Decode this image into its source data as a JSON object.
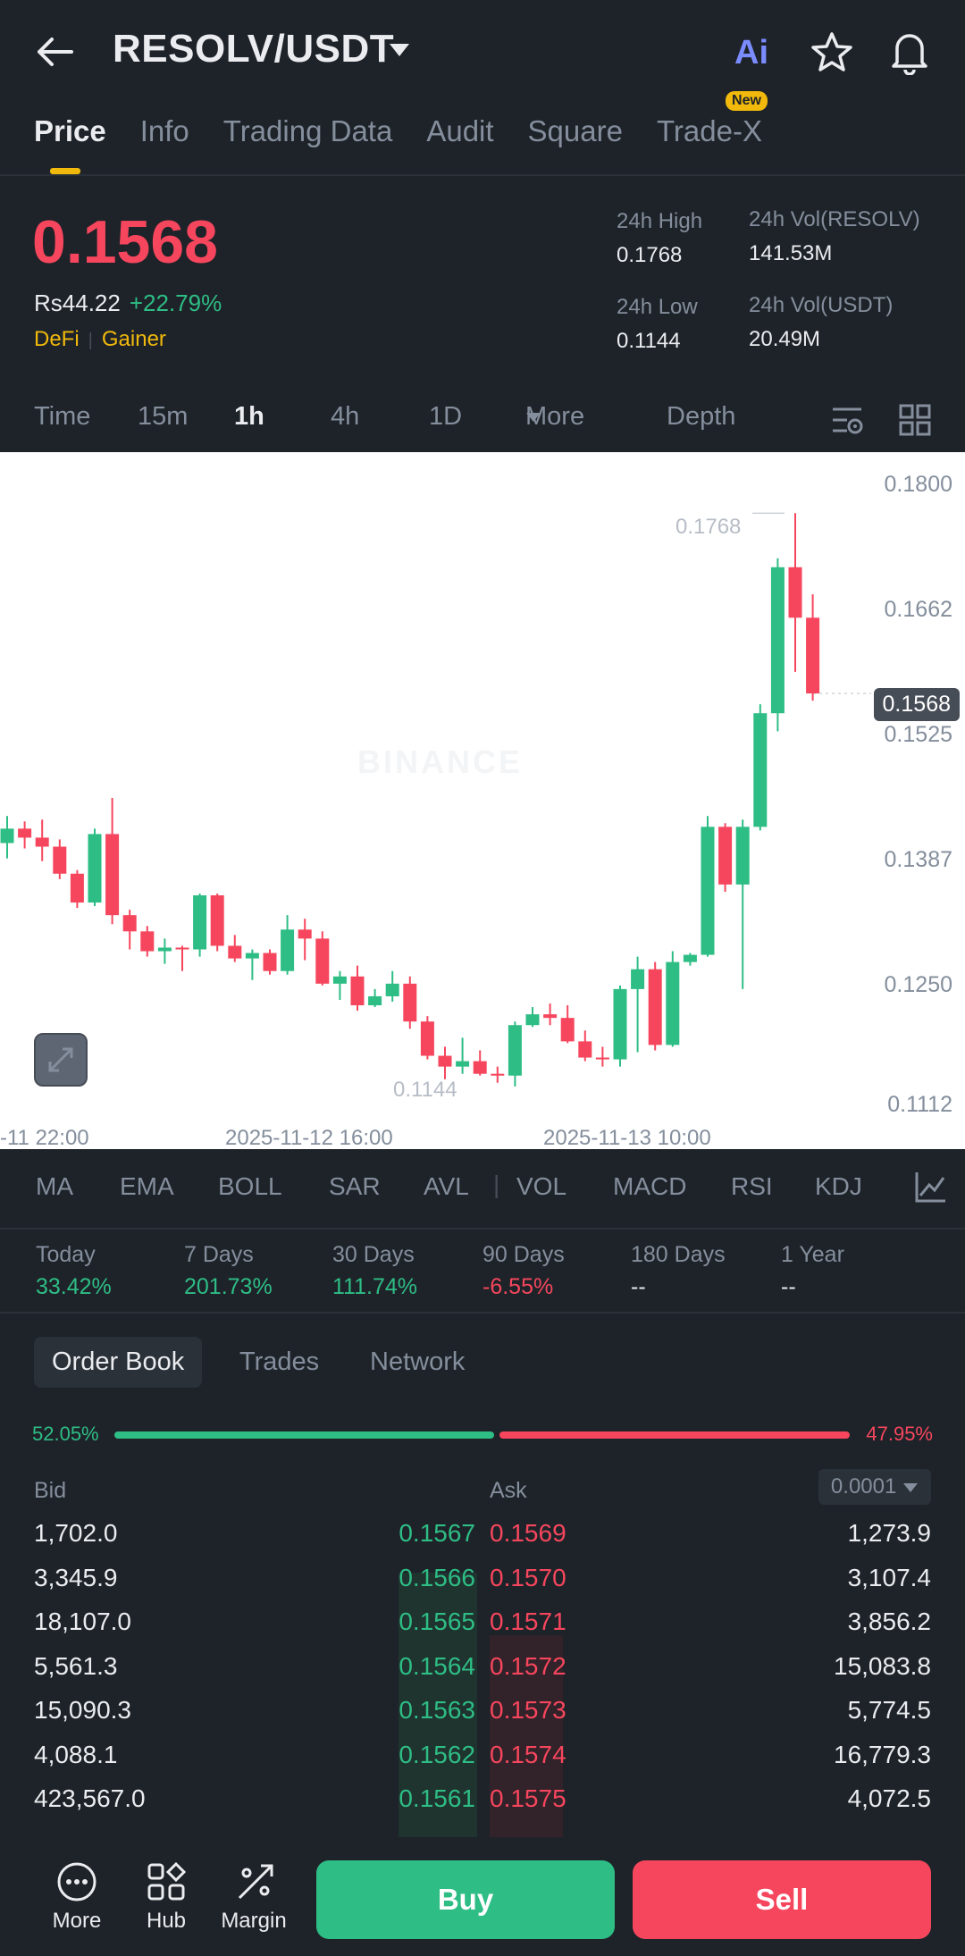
{
  "header": {
    "pair": "RESOLV/USDT",
    "ai_label": "Ai"
  },
  "tabs": [
    {
      "label": "Price"
    },
    {
      "label": "Info"
    },
    {
      "label": "Trading Data"
    },
    {
      "label": "Audit"
    },
    {
      "label": "Square"
    },
    {
      "label": "Trade-X"
    }
  ],
  "new_badge": "New",
  "price": {
    "last": "0.1568",
    "local": "Rs44.22",
    "change": "+22.79%",
    "tag1": "DeFi",
    "tag2": "Gainer"
  },
  "stats": {
    "high_label": "24h High",
    "high": "0.1768",
    "low_label": "24h Low",
    "low": "0.1144",
    "vol_base_label": "24h Vol(RESOLV)",
    "vol_base": "141.53M",
    "vol_quote_label": "24h Vol(USDT)",
    "vol_quote": "20.49M"
  },
  "intervals": {
    "time": "Time",
    "m15": "15m",
    "h1": "1h",
    "h4": "4h",
    "d1": "1D",
    "more": "More",
    "depth": "Depth"
  },
  "chart": {
    "price_ticks": [
      "0.1800",
      "0.1662",
      "0.1525",
      "0.1387",
      "0.1250",
      "0.1112"
    ],
    "current": "0.1568",
    "high_marker": "0.1768",
    "low_marker": "0.1144",
    "x_labels": [
      "-11 22:00",
      "2025-11-12 16:00",
      "2025-11-13 10:00"
    ],
    "watermark": "BINANCE"
  },
  "chart_data": {
    "type": "candlestick",
    "ylim": [
      0.1112,
      0.18
    ],
    "up_color": "#2ebd85",
    "down_color": "#f6465d",
    "candles": [
      [
        0.1402,
        0.1432,
        0.1418,
        0.1385
      ],
      [
        0.1418,
        0.1426,
        0.1408,
        0.1396
      ],
      [
        0.1408,
        0.1428,
        0.1398,
        0.1382
      ],
      [
        0.1398,
        0.1406,
        0.1368,
        0.1362
      ],
      [
        0.1368,
        0.1372,
        0.1336,
        0.133
      ],
      [
        0.1336,
        0.1418,
        0.1412,
        0.1332
      ],
      [
        0.1412,
        0.1452,
        0.1322,
        0.1312
      ],
      [
        0.1322,
        0.1328,
        0.1304,
        0.1284
      ],
      [
        0.1304,
        0.131,
        0.1282,
        0.1276
      ],
      [
        0.1282,
        0.1296,
        0.1286,
        0.1268
      ],
      [
        0.1286,
        0.1288,
        0.1284,
        0.126
      ],
      [
        0.1284,
        0.1346,
        0.1344,
        0.1276
      ],
      [
        0.1344,
        0.1346,
        0.1288,
        0.1282
      ],
      [
        0.1288,
        0.13,
        0.1274,
        0.127
      ],
      [
        0.1274,
        0.1284,
        0.128,
        0.125
      ],
      [
        0.128,
        0.1284,
        0.126,
        0.1256
      ],
      [
        0.126,
        0.1322,
        0.1306,
        0.1256
      ],
      [
        0.1306,
        0.1318,
        0.1296,
        0.1272
      ],
      [
        0.1296,
        0.1304,
        0.1246,
        0.1244
      ],
      [
        0.1246,
        0.126,
        0.1254,
        0.1228
      ],
      [
        0.1254,
        0.1266,
        0.1222,
        0.1216
      ],
      [
        0.1222,
        0.124,
        0.1232,
        0.122
      ],
      [
        0.1232,
        0.126,
        0.1246,
        0.1226
      ],
      [
        0.1246,
        0.1254,
        0.1204,
        0.1196
      ],
      [
        0.1204,
        0.121,
        0.1166,
        0.1162
      ],
      [
        0.1166,
        0.1176,
        0.1154,
        0.114
      ],
      [
        0.1154,
        0.1186,
        0.116,
        0.1146
      ],
      [
        0.116,
        0.1172,
        0.1146,
        0.1144
      ],
      [
        0.1146,
        0.1154,
        0.1144,
        0.1136
      ],
      [
        0.1144,
        0.1204,
        0.12,
        0.1132
      ],
      [
        0.12,
        0.122,
        0.1212,
        0.1198
      ],
      [
        0.1212,
        0.1224,
        0.1208,
        0.12
      ],
      [
        0.1208,
        0.1222,
        0.1182,
        0.118
      ],
      [
        0.1182,
        0.1194,
        0.1164,
        0.116
      ],
      [
        0.1164,
        0.1176,
        0.1162,
        0.1154
      ],
      [
        0.1162,
        0.1244,
        0.124,
        0.1154
      ],
      [
        0.124,
        0.1276,
        0.1262,
        0.117
      ],
      [
        0.1262,
        0.127,
        0.1178,
        0.1172
      ],
      [
        0.1178,
        0.1282,
        0.127,
        0.1176
      ],
      [
        0.127,
        0.128,
        0.1278,
        0.1266
      ],
      [
        0.1278,
        0.1432,
        0.142,
        0.1276
      ],
      [
        0.142,
        0.1424,
        0.1356,
        0.1348
      ],
      [
        0.1356,
        0.1428,
        0.142,
        0.124
      ],
      [
        0.142,
        0.1556,
        0.1546,
        0.1416
      ],
      [
        0.1546,
        0.1718,
        0.1708,
        0.1526
      ],
      [
        0.1708,
        0.1768,
        0.1652,
        0.1592
      ],
      [
        0.1652,
        0.1678,
        0.1568,
        0.156
      ]
    ]
  },
  "indicators": [
    "MA",
    "EMA",
    "BOLL",
    "SAR",
    "AVL",
    "VOL",
    "MACD",
    "RSI",
    "KDJ"
  ],
  "performance": [
    {
      "label": "Today",
      "value": "33.42%",
      "color": "#2ebd85"
    },
    {
      "label": "7 Days",
      "value": "201.73%",
      "color": "#2ebd85"
    },
    {
      "label": "30 Days",
      "value": "111.74%",
      "color": "#2ebd85"
    },
    {
      "label": "90 Days",
      "value": "-6.55%",
      "color": "#f6465d"
    },
    {
      "label": "180 Days",
      "value": "--",
      "color": "#eaecef"
    },
    {
      "label": "1 Year",
      "value": "--",
      "color": "#eaecef"
    }
  ],
  "orderbook": {
    "tabs": [
      "Order Book",
      "Trades",
      "Network"
    ],
    "bid_ratio": "52.05%",
    "ask_ratio": "47.95%",
    "bid_header": "Bid",
    "ask_header": "Ask",
    "precision": "0.0001",
    "rows": [
      {
        "bid_qty": "1,702.0",
        "bid": "0.1567",
        "ask": "0.1569",
        "ask_qty": "1,273.9"
      },
      {
        "bid_qty": "3,345.9",
        "bid": "0.1566",
        "ask": "0.1570",
        "ask_qty": "3,107.4"
      },
      {
        "bid_qty": "18,107.0",
        "bid": "0.1565",
        "ask": "0.1571",
        "ask_qty": "3,856.2"
      },
      {
        "bid_qty": "5,561.3",
        "bid": "0.1564",
        "ask": "0.1572",
        "ask_qty": "15,083.8"
      },
      {
        "bid_qty": "15,090.3",
        "bid": "0.1563",
        "ask": "0.1573",
        "ask_qty": "5,774.5"
      },
      {
        "bid_qty": "4,088.1",
        "bid": "0.1562",
        "ask": "0.1574",
        "ask_qty": "16,779.3"
      },
      {
        "bid_qty": "423,567.0",
        "bid": "0.1561",
        "ask": "0.1575",
        "ask_qty": "4,072.5"
      }
    ]
  },
  "bottom": {
    "more": "More",
    "hub": "Hub",
    "margin": "Margin",
    "buy": "Buy",
    "sell": "Sell"
  }
}
